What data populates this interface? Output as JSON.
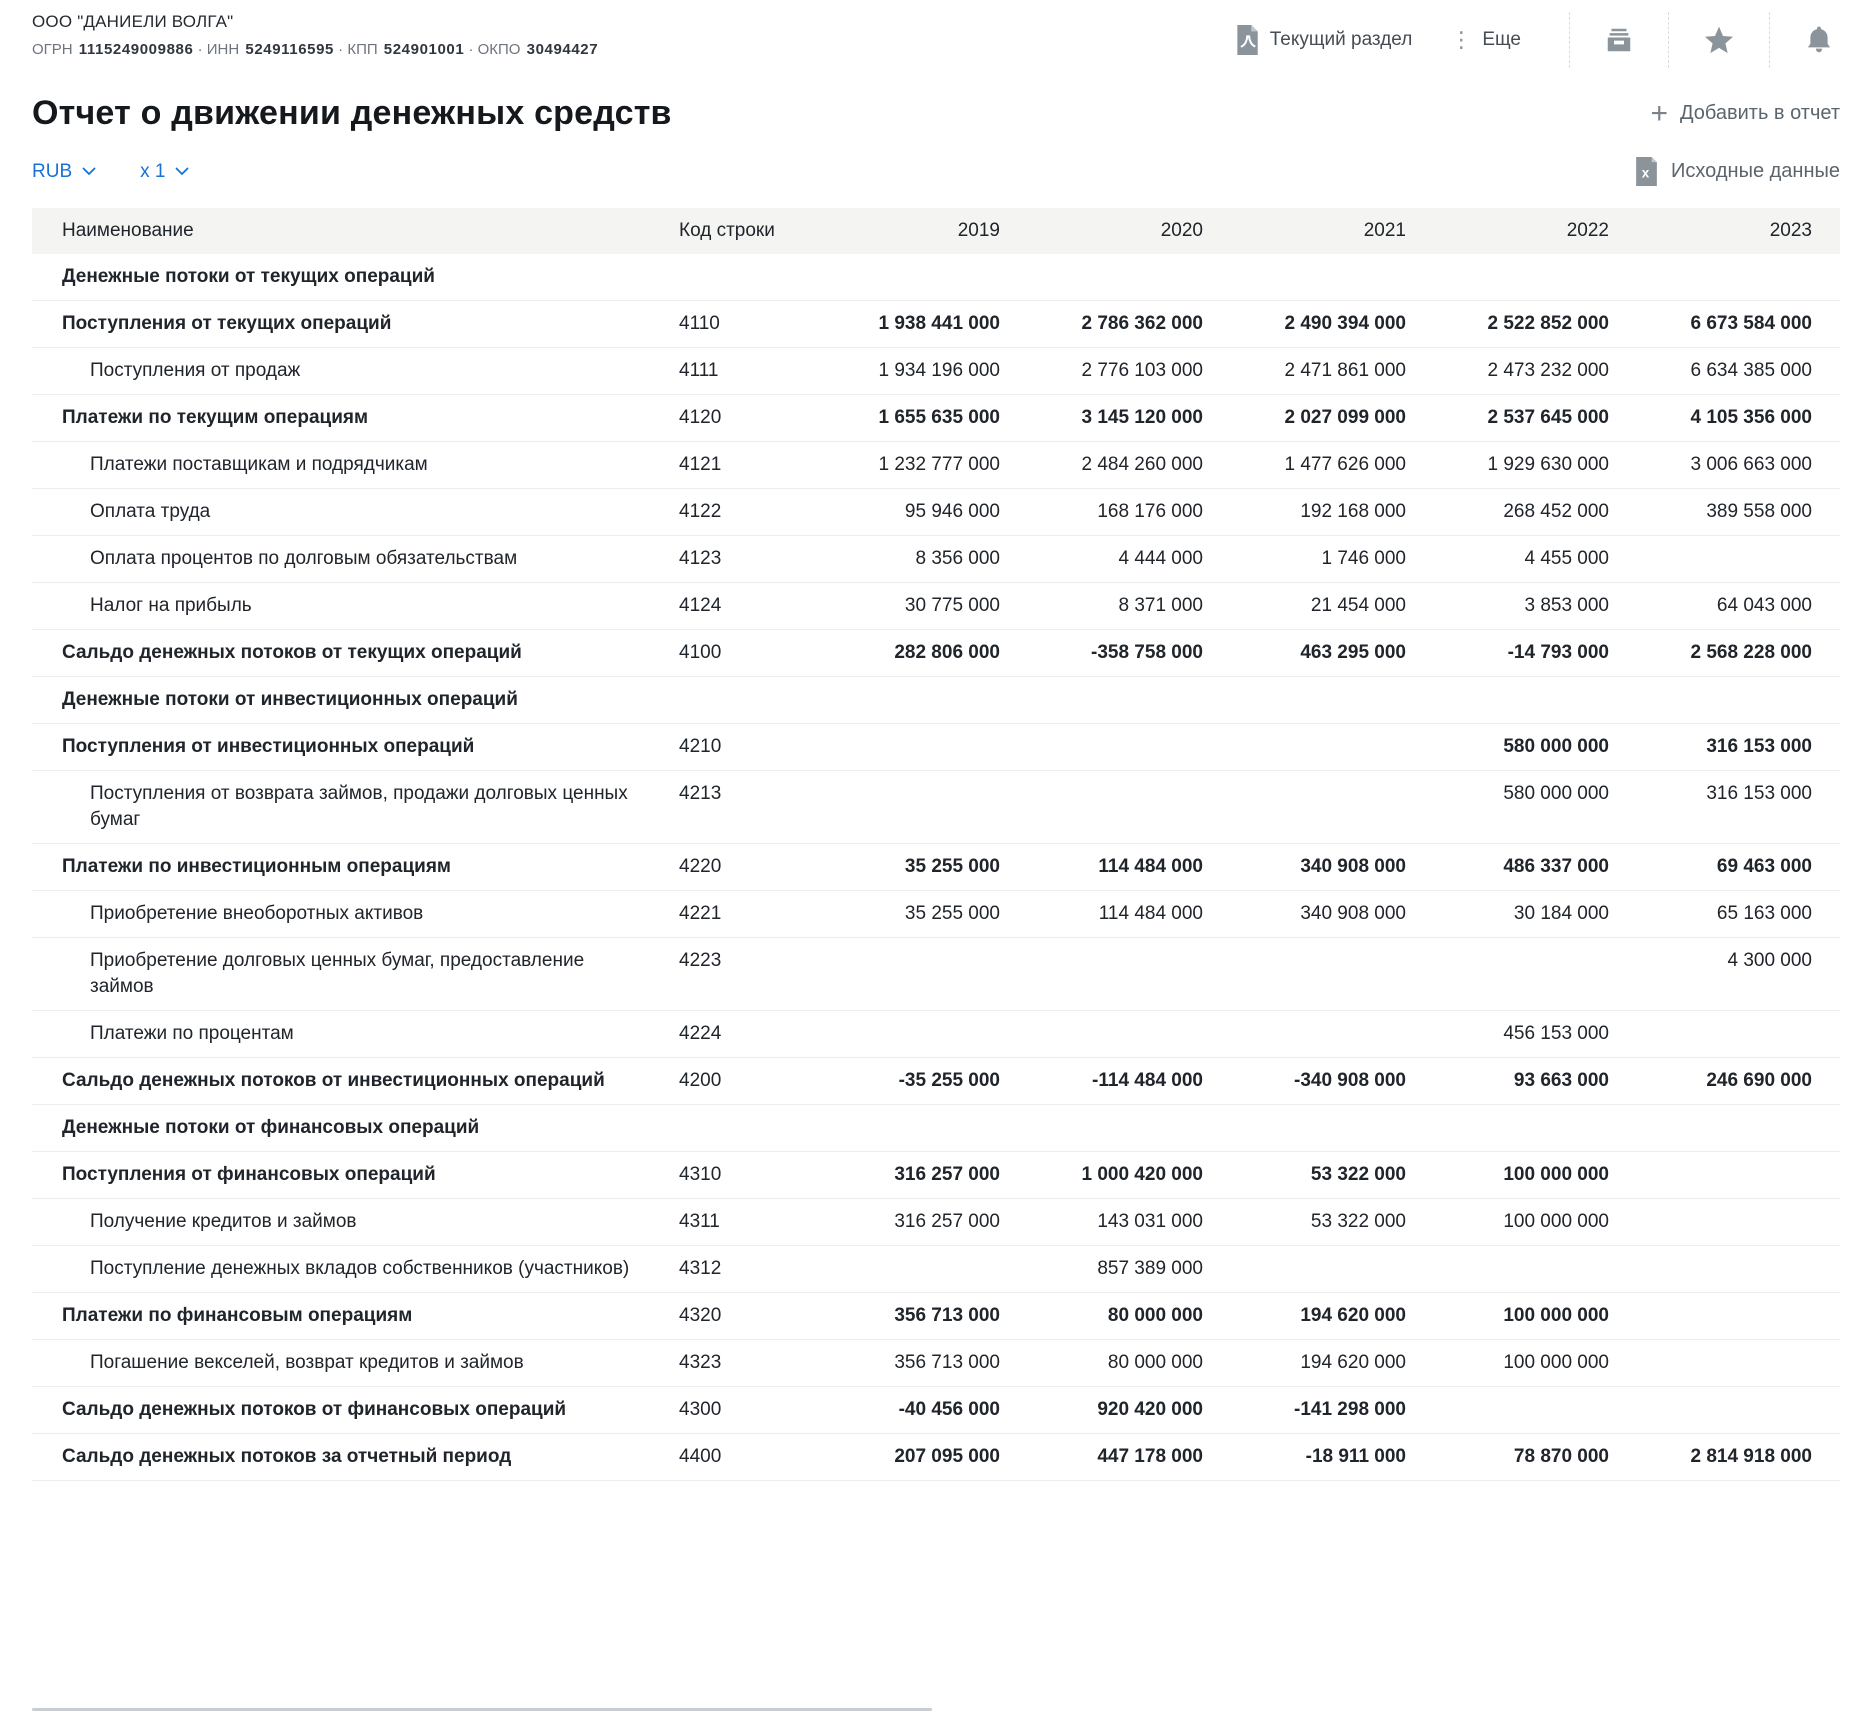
{
  "colors": {
    "accent_blue": "#1771d6",
    "icon_gray": "#8b939b",
    "header_band_bg": "#f4f4f2",
    "row_border": "#ececea",
    "text_dark": "#20252b",
    "muted_text": "#5c646c"
  },
  "header": {
    "company_name": "ООО \"ДАНИЕЛИ ВОЛГА\"",
    "separator": "·",
    "registration": [
      {
        "label": "ОГРН",
        "value": "1115249009886"
      },
      {
        "label": "ИНН",
        "value": "5249116595"
      },
      {
        "label": "КПП",
        "value": "524901001"
      },
      {
        "label": "ОКПО",
        "value": "30494427"
      }
    ],
    "actions": {
      "pdf_label": "Текущий раздел",
      "more_label": "Еще"
    }
  },
  "page": {
    "title": "Отчет о движении денежных средств",
    "currency_selector": "RUB",
    "multiplier_selector": "x 1",
    "add_to_report_label": "Добавить в отчет",
    "source_data_label": "Исходные данные"
  },
  "table": {
    "columns": [
      "Наименование",
      "Код строки",
      "2019",
      "2020",
      "2021",
      "2022",
      "2023"
    ],
    "rows": [
      {
        "type": "section",
        "name": "Денежные потоки от текущих операций",
        "code": "",
        "values": [
          "",
          "",
          "",
          "",
          ""
        ]
      },
      {
        "type": "bold",
        "name": "Поступления от текущих операций",
        "code": "4110",
        "values": [
          "1 938 441 000",
          "2 786 362 000",
          "2 490 394 000",
          "2 522 852 000",
          "6 673 584 000"
        ]
      },
      {
        "type": "sub",
        "name": "Поступления от продаж",
        "code": "4111",
        "values": [
          "1 934 196 000",
          "2 776 103 000",
          "2 471 861 000",
          "2 473 232 000",
          "6 634 385 000"
        ]
      },
      {
        "type": "bold",
        "name": "Платежи по текущим операциям",
        "code": "4120",
        "values": [
          "1 655 635 000",
          "3 145 120 000",
          "2 027 099 000",
          "2 537 645 000",
          "4 105 356 000"
        ]
      },
      {
        "type": "sub",
        "name": "Платежи поставщикам и подрядчикам",
        "code": "4121",
        "values": [
          "1 232 777 000",
          "2 484 260 000",
          "1 477 626 000",
          "1 929 630 000",
          "3 006 663 000"
        ]
      },
      {
        "type": "sub",
        "name": "Оплата труда",
        "code": "4122",
        "values": [
          "95 946 000",
          "168 176 000",
          "192 168 000",
          "268 452 000",
          "389 558 000"
        ]
      },
      {
        "type": "sub",
        "name": "Оплата процентов по долговым обязательствам",
        "code": "4123",
        "values": [
          "8 356 000",
          "4 444 000",
          "1 746 000",
          "4 455 000",
          ""
        ]
      },
      {
        "type": "sub",
        "name": "Налог на прибыль",
        "code": "4124",
        "values": [
          "30 775 000",
          "8 371 000",
          "21 454 000",
          "3 853 000",
          "64 043 000"
        ]
      },
      {
        "type": "bold",
        "name": "Сальдо денежных потоков от текущих операций",
        "code": "4100",
        "values": [
          "282 806 000",
          "-358 758 000",
          "463 295 000",
          "-14 793 000",
          "2 568 228 000"
        ]
      },
      {
        "type": "section",
        "name": "Денежные потоки от инвестиционных операций",
        "code": "",
        "values": [
          "",
          "",
          "",
          "",
          ""
        ]
      },
      {
        "type": "bold",
        "name": "Поступления от инвестиционных операций",
        "code": "4210",
        "values": [
          "",
          "",
          "",
          "580 000 000",
          "316 153 000"
        ]
      },
      {
        "type": "sub",
        "name": "Поступления от возврата займов, продажи долговых ценных бумаг",
        "code": "4213",
        "values": [
          "",
          "",
          "",
          "580 000 000",
          "316 153 000"
        ]
      },
      {
        "type": "bold",
        "name": "Платежи по инвестиционным операциям",
        "code": "4220",
        "values": [
          "35 255 000",
          "114 484 000",
          "340 908 000",
          "486 337 000",
          "69 463 000"
        ]
      },
      {
        "type": "sub",
        "name": "Приобретение внеоборотных активов",
        "code": "4221",
        "values": [
          "35 255 000",
          "114 484 000",
          "340 908 000",
          "30 184 000",
          "65 163 000"
        ]
      },
      {
        "type": "sub",
        "name": "Приобретение долговых ценных бумаг, предоставление займов",
        "code": "4223",
        "values": [
          "",
          "",
          "",
          "",
          "4 300 000"
        ]
      },
      {
        "type": "sub",
        "name": "Платежи по процентам",
        "code": "4224",
        "values": [
          "",
          "",
          "",
          "456 153 000",
          ""
        ]
      },
      {
        "type": "bold",
        "name": "Сальдо денежных потоков от инвестиционных операций",
        "code": "4200",
        "values": [
          "-35 255 000",
          "-114 484 000",
          "-340 908 000",
          "93 663 000",
          "246 690 000"
        ]
      },
      {
        "type": "section",
        "name": "Денежные потоки от финансовых операций",
        "code": "",
        "values": [
          "",
          "",
          "",
          "",
          ""
        ]
      },
      {
        "type": "bold",
        "name": "Поступления от финансовых операций",
        "code": "4310",
        "values": [
          "316 257 000",
          "1 000 420 000",
          "53 322 000",
          "100 000 000",
          ""
        ]
      },
      {
        "type": "sub",
        "name": "Получение кредитов и займов",
        "code": "4311",
        "values": [
          "316 257 000",
          "143 031 000",
          "53 322 000",
          "100 000 000",
          ""
        ]
      },
      {
        "type": "sub",
        "name": "Поступление денежных вкладов собственников (участников)",
        "code": "4312",
        "values": [
          "",
          "857 389 000",
          "",
          "",
          ""
        ]
      },
      {
        "type": "bold",
        "name": "Платежи по финансовым операциям",
        "code": "4320",
        "values": [
          "356 713 000",
          "80 000 000",
          "194 620 000",
          "100 000 000",
          ""
        ]
      },
      {
        "type": "sub",
        "name": "Погашение векселей, возврат кредитов и займов",
        "code": "4323",
        "values": [
          "356 713 000",
          "80 000 000",
          "194 620 000",
          "100 000 000",
          ""
        ]
      },
      {
        "type": "bold",
        "name": "Сальдо денежных потоков от финансовых операций",
        "code": "4300",
        "values": [
          "-40 456 000",
          "920 420 000",
          "-141 298 000",
          "",
          ""
        ]
      },
      {
        "type": "bold",
        "name": "Сальдо денежных потоков за отчетный период",
        "code": "4400",
        "values": [
          "207 095 000",
          "447 178 000",
          "-18 911 000",
          "78 870 000",
          "2 814 918 000"
        ]
      }
    ]
  }
}
